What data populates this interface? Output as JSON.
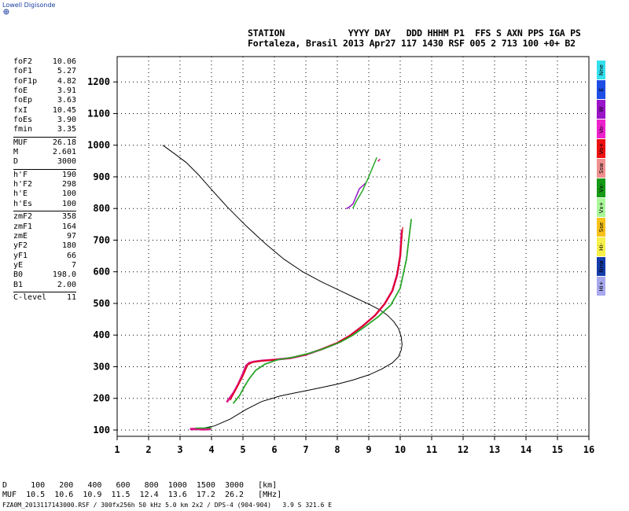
{
  "brand": {
    "name": "Lowell Digisonde"
  },
  "header": {
    "line1": "STATION            YYYY DAY   DDD HHHM P1  FFS S AXN PPS IGA PS",
    "line2": "Fortaleza, Brasil 2013 Apr27 117 1430 RSF 005 2 713 100 +0+ B2"
  },
  "params": [
    [
      {
        "k": "foF2",
        "v": "10.06"
      },
      {
        "k": "foF1",
        "v": "5.27"
      },
      {
        "k": "foF1p",
        "v": "4.82"
      },
      {
        "k": "foE",
        "v": "3.91"
      },
      {
        "k": "foEp",
        "v": "3.63"
      },
      {
        "k": "fxI",
        "v": "10.45"
      },
      {
        "k": "foEs",
        "v": "3.90"
      },
      {
        "k": "fmin",
        "v": "3.35"
      }
    ],
    [
      {
        "k": "MUF",
        "v": "26.18"
      },
      {
        "k": "M",
        "v": "2.601"
      },
      {
        "k": "D",
        "v": "3000"
      }
    ],
    [
      {
        "k": "h'F",
        "v": "190"
      },
      {
        "k": "h'F2",
        "v": "298"
      },
      {
        "k": "h'E",
        "v": "100"
      },
      {
        "k": "h'Es",
        "v": "100"
      }
    ],
    [
      {
        "k": "zmF2",
        "v": "358"
      },
      {
        "k": "zmF1",
        "v": "164"
      },
      {
        "k": "zmE",
        "v": "97"
      },
      {
        "k": "yF2",
        "v": "180"
      },
      {
        "k": "yF1",
        "v": "66"
      },
      {
        "k": "yE",
        "v": "7"
      },
      {
        "k": "B0",
        "v": "198.0"
      },
      {
        "k": "B1",
        "v": "2.00"
      }
    ],
    [
      {
        "k": "C-level",
        "v": "11"
      }
    ]
  ],
  "bottom": {
    "line1": "D     100   200   400   600   800  1000  1500  3000   [km]",
    "line2": "MUF  10.5  10.6  10.9  11.5  12.4  13.6  17.2  26.2   [MHz]",
    "footer": "FZA0M_2013117143000.RSF / 300fx256h 50 kHz 5.0 km 2x2 / DPS-4 (904-904)   3.9 S 321.6 E"
  },
  "legend": [
    {
      "label": "Nne",
      "color": "#33e0ee"
    },
    {
      "label": "E",
      "color": "#1f4ee6"
    },
    {
      "label": "W",
      "color": "#9a14c8"
    },
    {
      "label": "Vo-",
      "color": "#ee22cc"
    },
    {
      "label": "Vo+",
      "color": "#ee1111"
    },
    {
      "label": "Ssw",
      "color": "#f09090"
    },
    {
      "label": "Vx-",
      "color": "#179a17"
    },
    {
      "label": "Vx+",
      "color": "#aaf79a"
    },
    {
      "label": "Sse",
      "color": "#f7c21a"
    },
    {
      "label": "Hi-",
      "color": "#f7f04a"
    },
    {
      "label": "Nnw",
      "color": "#143caa"
    },
    {
      "label": "Hi+",
      "color": "#a8a8ee"
    }
  ],
  "chart_data": {
    "type": "scatter",
    "xlim": [
      1,
      16
    ],
    "ylim": [
      80,
      1280
    ],
    "xticks": [
      "1",
      "2",
      "3",
      "4",
      "5",
      "6",
      "7",
      "8",
      "9",
      "10",
      "11",
      "12",
      "13",
      "14",
      "15",
      "16"
    ],
    "yticks": [
      "100",
      "200",
      "300",
      "400",
      "500",
      "600",
      "700",
      "800",
      "900",
      "1000",
      "1100",
      "1200"
    ],
    "grid": true,
    "profile": {
      "x": [
        3.35,
        3.7,
        4.1,
        4.6,
        5.1,
        5.6,
        6.2,
        6.8,
        7.4,
        8.0,
        8.5,
        9.0,
        9.4,
        9.75,
        9.95,
        10.03,
        10.06,
        10.03,
        9.95,
        9.8,
        9.6,
        9.35,
        9.0,
        8.6,
        8.1,
        7.5,
        6.9,
        6.3,
        5.7,
        5.1,
        4.5,
        4.0,
        3.6,
        3.2,
        2.8,
        2.45
      ],
      "y": [
        100,
        105,
        113,
        135,
        165,
        190,
        208,
        220,
        232,
        245,
        258,
        274,
        292,
        312,
        332,
        352,
        370,
        395,
        420,
        442,
        462,
        480,
        498,
        516,
        540,
        568,
        600,
        640,
        690,
        745,
        805,
        860,
        905,
        945,
        975,
        1000
      ]
    },
    "traces": [
      {
        "trace": "O-mode",
        "color": "#dd1188",
        "width": 2.6,
        "x": [
          4.5,
          4.7,
          4.85,
          5.0,
          5.1,
          5.2,
          5.35,
          5.6,
          6.0,
          6.5,
          7.0,
          7.5,
          8.0,
          8.4,
          8.8,
          9.2,
          9.5,
          9.75,
          9.9,
          10.0,
          10.05
        ],
        "y": [
          190,
          218,
          245,
          278,
          303,
          312,
          316,
          319,
          322,
          327,
          338,
          355,
          375,
          398,
          428,
          462,
          498,
          540,
          590,
          650,
          730
        ]
      },
      {
        "trace": "O-mode-red",
        "color": "#dd0000",
        "width": 1.2,
        "x": [
          4.6,
          4.8,
          5.0,
          5.15,
          5.3,
          5.6,
          6.0,
          6.5,
          7.0,
          7.5,
          8.0,
          8.4,
          8.8,
          9.2,
          9.5,
          9.75,
          9.9,
          10.0,
          10.08
        ],
        "y": [
          195,
          232,
          270,
          305,
          313,
          318,
          322,
          327,
          338,
          356,
          376,
          398,
          428,
          462,
          498,
          540,
          590,
          650,
          740
        ]
      },
      {
        "trace": "X-mode",
        "color": "#27a527",
        "width": 1.8,
        "x": [
          4.7,
          4.9,
          5.05,
          5.2,
          5.4,
          5.7,
          6.1,
          6.6,
          7.1,
          7.6,
          8.1,
          8.5,
          8.9,
          9.3,
          9.7,
          10.0,
          10.2,
          10.35
        ],
        "y": [
          185,
          210,
          238,
          262,
          288,
          308,
          322,
          330,
          342,
          358,
          378,
          400,
          428,
          458,
          495,
          548,
          640,
          765
        ]
      },
      {
        "trace": "E-layer",
        "color": "#dd1188",
        "width": 3,
        "x": [
          3.35,
          3.55,
          3.75,
          3.95
        ],
        "y": [
          103,
          103,
          102,
          103
        ]
      },
      {
        "trace": "E-layer-x",
        "color": "#27a527",
        "width": 1.5,
        "x": [
          3.5,
          3.8,
          4.0
        ],
        "y": [
          106,
          106,
          107
        ]
      },
      {
        "trace": "spread",
        "color": "#9a14c8",
        "width": 1.5,
        "x": [
          8.3,
          8.4,
          8.5,
          8.7,
          8.9
        ],
        "y": [
          800,
          806,
          815,
          862,
          880
        ]
      },
      {
        "trace": "spread-x",
        "color": "#27a527",
        "width": 1.5,
        "x": [
          8.5,
          8.6,
          8.8,
          9.0,
          9.25
        ],
        "y": [
          802,
          822,
          856,
          900,
          960
        ]
      },
      {
        "trace": "scatter1",
        "color": "#dd1188",
        "width": 1.5,
        "x": [
          9.3,
          9.35
        ],
        "y": [
          950,
          955
        ]
      }
    ]
  }
}
